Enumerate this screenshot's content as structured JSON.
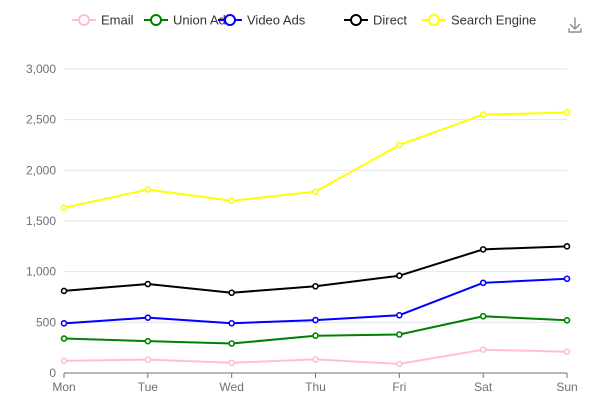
{
  "chart_data": {
    "type": "line",
    "categories": [
      "Mon",
      "Tue",
      "Wed",
      "Thu",
      "Fri",
      "Sat",
      "Sun"
    ],
    "series": [
      {
        "name": "Email",
        "color": "#ffc0cb",
        "values": [
          120,
          132,
          101,
          134,
          90,
          230,
          210
        ]
      },
      {
        "name": "Union Ads",
        "color": "#008000",
        "values": [
          340,
          314,
          291,
          368,
          380,
          560,
          520
        ]
      },
      {
        "name": "Video Ads",
        "color": "#0000ff",
        "values": [
          490,
          546,
          491,
          522,
          570,
          890,
          930
        ]
      },
      {
        "name": "Direct",
        "color": "#000000",
        "values": [
          810,
          878,
          792,
          856,
          960,
          1220,
          1250
        ]
      },
      {
        "name": "Search Engine",
        "color": "#ffff00",
        "values": [
          1630,
          1810,
          1700,
          1790,
          2250,
          2550,
          2570
        ]
      }
    ],
    "y_ticks": [
      "0",
      "500",
      "1,000",
      "1,500",
      "2,000",
      "2,500",
      "3,000"
    ],
    "ylim": [
      0,
      3000
    ],
    "grid": true,
    "legend": "top-center",
    "title": "",
    "xlabel": "",
    "ylabel": ""
  },
  "toolbox": {
    "icon": "download-icon"
  }
}
